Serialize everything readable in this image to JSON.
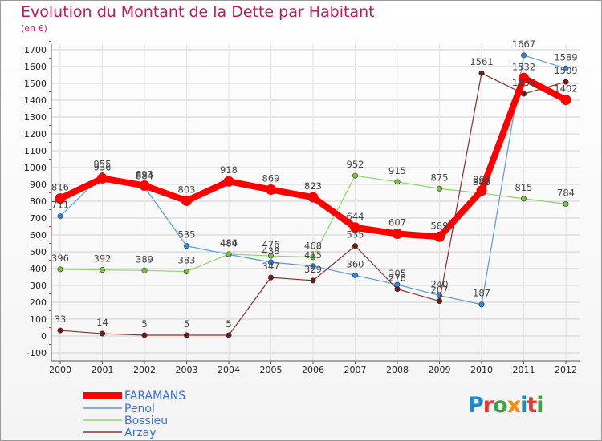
{
  "header": {
    "title": "Evolution du Montant de la Dette par Habitant",
    "subtitle": "(en €)"
  },
  "logo": {
    "text": "Proxiti",
    "letter_colors": [
      "#1e88c8",
      "#e53935",
      "#43a047",
      "#fb8c00",
      "#1e88c8",
      "#e53935",
      "#43a047"
    ]
  },
  "chart_data": {
    "type": "line",
    "title": "Evolution du Montant de la Dette par Habitant",
    "subtitle": "(en €)",
    "x": [
      "2000",
      "2001",
      "2002",
      "2003",
      "2004",
      "2005",
      "2006",
      "2007",
      "2008",
      "2009",
      "2010",
      "2011",
      "2012"
    ],
    "ylim": [
      -100,
      1700
    ],
    "yticks": [
      -100,
      0,
      100,
      200,
      300,
      400,
      500,
      600,
      700,
      800,
      900,
      1000,
      1100,
      1200,
      1300,
      1400,
      1500,
      1600,
      1700
    ],
    "legend_position": "bottom-left",
    "series": [
      {
        "name": "Penol",
        "color": "#5b9bd5",
        "marker_color": "#2e86de",
        "values": [
          711,
          955,
          884,
          535,
          484,
          438,
          415,
          360,
          305,
          240,
          187,
          1667,
          1589
        ],
        "labels": [
          "711",
          "955",
          "884",
          "535",
          "484",
          "438",
          "415",
          "360",
          "305",
          "240",
          "187",
          "1667",
          "1589"
        ]
      },
      {
        "name": "Bossieu",
        "color": "#90d36b",
        "marker_color": "#7bc043",
        "values": [
          396,
          392,
          389,
          383,
          486,
          476,
          468,
          952,
          915,
          875,
          848,
          815,
          784
        ],
        "labels": [
          "396",
          "392",
          "389",
          "383",
          "486",
          "476",
          "468",
          "952",
          "915",
          "875",
          "848",
          "815",
          "784"
        ]
      },
      {
        "name": "Arzay",
        "color": "#8b2e2e",
        "marker_color": "#6d1a1a",
        "values": [
          33,
          14,
          5,
          5,
          5,
          347,
          329,
          535,
          278,
          207,
          1561,
          1438,
          1509
        ],
        "labels": [
          "33",
          "14",
          "5",
          "5",
          "5",
          "347",
          "329",
          "535",
          "278",
          "207",
          "1561",
          "1438",
          "1509"
        ]
      },
      {
        "name": "FARAMANS",
        "color": "#ff0000",
        "marker_color": "#ff0000",
        "values": [
          816,
          936,
          893,
          803,
          918,
          869,
          823,
          644,
          607,
          589,
          863,
          1532,
          1402
        ],
        "labels": [
          "816",
          "936",
          "893",
          "803",
          "918",
          "869",
          "823",
          "644",
          "607",
          "589",
          "863",
          "1532",
          "1402"
        ]
      }
    ],
    "legend": [
      "FARAMANS",
      "Penol",
      "Bossieu",
      "Arzay"
    ]
  }
}
